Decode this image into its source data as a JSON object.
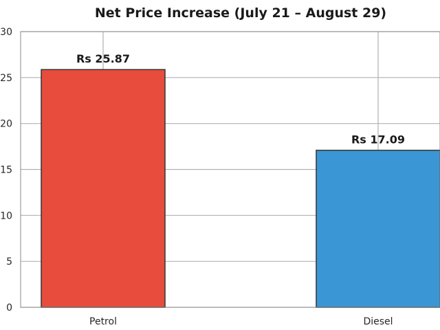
{
  "chart_data": {
    "type": "bar",
    "title": "Net Price Increase (July 21 – August 29)",
    "xlabel": "",
    "ylabel": "",
    "categories": [
      "Petrol",
      "Diesel"
    ],
    "values": [
      25.87,
      17.09
    ],
    "data_labels": [
      "Rs 25.87",
      "Rs 17.09"
    ],
    "colors": [
      "#e74c3c",
      "#3a96d4"
    ],
    "ylim": [
      0,
      30
    ],
    "yticks": [
      0,
      5,
      10,
      15,
      20,
      25,
      30
    ],
    "ytick_labels": [
      "0",
      "5",
      "10",
      "15",
      "20",
      "25",
      "30"
    ],
    "grid": true,
    "legend": "none"
  }
}
